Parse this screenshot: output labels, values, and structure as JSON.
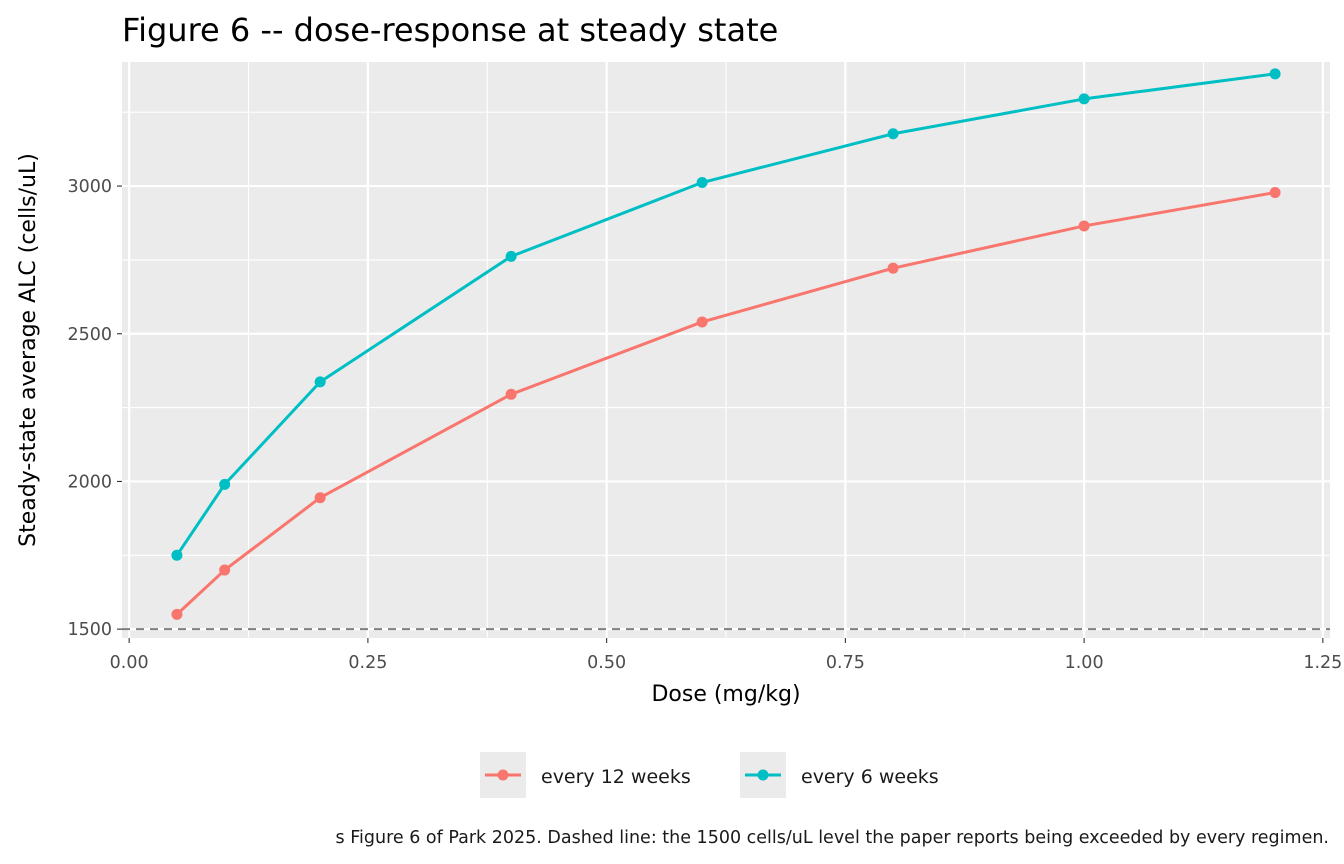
{
  "chart_data": {
    "type": "line",
    "title": "Figure 6 -- dose-response at steady state",
    "xlabel": "Dose (mg/kg)",
    "ylabel": "Steady-state average ALC (cells/uL)",
    "x": [
      0.05,
      0.1,
      0.2,
      0.4,
      0.6,
      0.8,
      1.0,
      1.2
    ],
    "xlim": [
      -0.0075,
      1.2575
    ],
    "ylim": [
      1470,
      3420
    ],
    "x_ticks": [
      0.0,
      0.25,
      0.5,
      0.75,
      1.0,
      1.25
    ],
    "x_tick_labels": [
      "0.00",
      "0.25",
      "0.50",
      "0.75",
      "1.00",
      "1.25"
    ],
    "y_ticks": [
      1500,
      2000,
      2500,
      3000
    ],
    "y_tick_labels": [
      "1500",
      "2000",
      "2500",
      "3000"
    ],
    "grid": true,
    "legend_position": "bottom",
    "series": [
      {
        "name": "every 12 weeks",
        "color": "#F8766D",
        "values": [
          1550,
          1700,
          1945,
          2295,
          2540,
          2722,
          2865,
          2978
        ]
      },
      {
        "name": "every 6 weeks",
        "color": "#00BFC4",
        "values": [
          1750,
          1990,
          2337,
          2762,
          3012,
          3177,
          3295,
          3380
        ]
      }
    ],
    "reference_line": {
      "y": 1500,
      "style": "dashed",
      "color": "#7f7f7f"
    },
    "caption": "Dashed line: the 1500 cells/uL level the paper reports being exceeded by every regimen.",
    "caption_full": "s Figure 6 of Park 2025. Dashed line: the 1500 cells/uL level the paper reports being exceeded by every regimen."
  }
}
